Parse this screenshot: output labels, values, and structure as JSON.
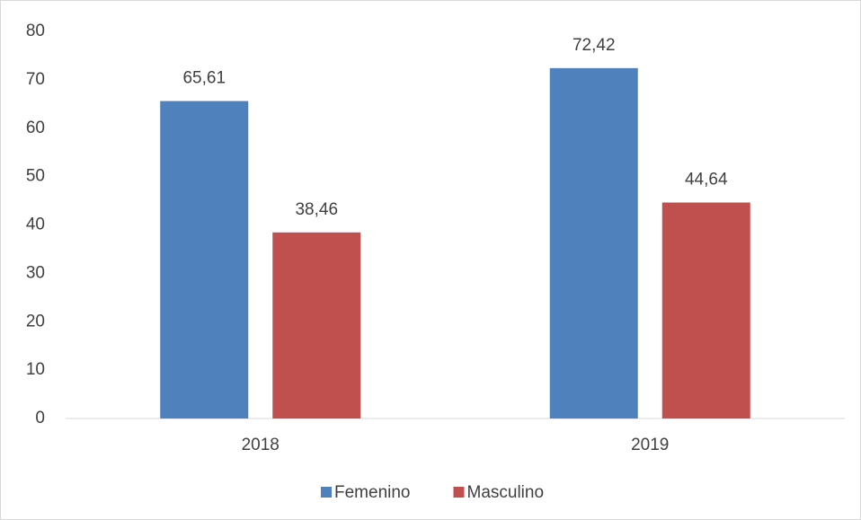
{
  "chart_data": {
    "type": "bar",
    "categories": [
      "2018",
      "2019"
    ],
    "series": [
      {
        "name": "Femenino",
        "color": "#4f81bd",
        "values": [
          65.61,
          72.42
        ],
        "value_labels": [
          "65,61",
          "72,42"
        ]
      },
      {
        "name": "Masculino",
        "color": "#c0504d",
        "values": [
          38.46,
          44.64
        ],
        "value_labels": [
          "38,46",
          "44,64"
        ]
      }
    ],
    "ylim": [
      0,
      80
    ],
    "yticks": [
      0,
      10,
      20,
      30,
      40,
      50,
      60,
      70,
      80
    ],
    "grid": false,
    "legend": "bottom"
  }
}
